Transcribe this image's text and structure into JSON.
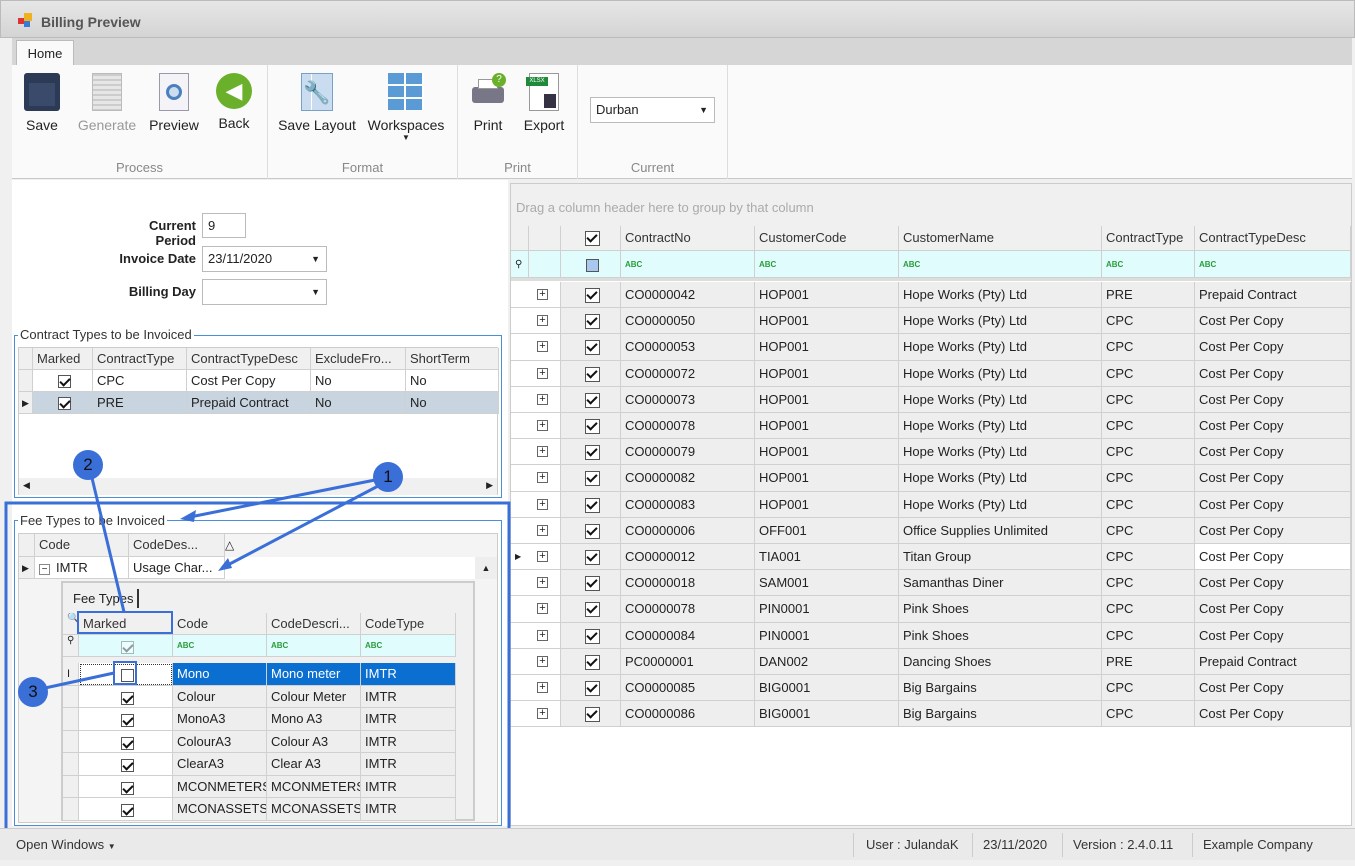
{
  "window": {
    "title": "Billing Preview"
  },
  "ribbon": {
    "tab": "Home",
    "groups": [
      {
        "label": "Process"
      },
      {
        "label": "Format"
      },
      {
        "label": "Print"
      },
      {
        "label": "Current"
      }
    ],
    "buttons": {
      "save": "Save",
      "generate": "Generate",
      "preview": "Preview",
      "back": "Back",
      "save_layout": "Save Layout",
      "workspaces": "Workspaces",
      "print": "Print",
      "export": "Export"
    },
    "branch_select": "Durban"
  },
  "form": {
    "current_period_label": "Current Period",
    "current_period": "9",
    "invoice_date_label": "Invoice Date",
    "invoice_date": "23/11/2020",
    "billing_day_label": "Billing Day",
    "billing_day": ""
  },
  "contract_types": {
    "title": "Contract Types to be Invoiced",
    "columns": [
      "Marked",
      "ContractType",
      "ContractTypeDesc",
      "ExcludeFro...",
      "ShortTerm"
    ],
    "rows": [
      {
        "marked": true,
        "type": "CPC",
        "desc": "Cost Per Copy",
        "exclude": "No",
        "short": "No"
      },
      {
        "marked": true,
        "type": "PRE",
        "desc": "Prepaid Contract",
        "exclude": "No",
        "short": "No"
      }
    ]
  },
  "fee_types": {
    "title": "Fee Types to be Invoiced",
    "columns": [
      "Code",
      "CodeDes..."
    ],
    "master_row": {
      "code": "IMTR",
      "desc": "Usage Char..."
    },
    "detail_tab": "Fee Types",
    "detail_columns": [
      "Marked",
      "Code",
      "CodeDescri...",
      "CodeType"
    ],
    "rows": [
      {
        "marked": false,
        "code": "Mono",
        "desc": "Mono meter",
        "type": "IMTR"
      },
      {
        "marked": true,
        "code": "Colour",
        "desc": "Colour Meter",
        "type": "IMTR"
      },
      {
        "marked": true,
        "code": "MonoA3",
        "desc": "Mono A3",
        "type": "IMTR"
      },
      {
        "marked": true,
        "code": "ColourA3",
        "desc": "Colour A3",
        "type": "IMTR"
      },
      {
        "marked": true,
        "code": "ClearA3",
        "desc": "Clear A3",
        "type": "IMTR"
      },
      {
        "marked": true,
        "code": "MCONMETERS",
        "desc": "MCONMETERS",
        "type": "IMTR"
      },
      {
        "marked": true,
        "code": "MCONASSETS",
        "desc": "MCONASSETS",
        "type": "IMTR"
      }
    ]
  },
  "main_grid": {
    "group_hint": "Drag a column header here to group by that column",
    "columns": [
      "ContractNo",
      "CustomerCode",
      "CustomerName",
      "ContractType",
      "ContractTypeDesc"
    ],
    "rows": [
      [
        "CO0000042",
        "HOP001",
        "Hope Works (Pty) Ltd",
        "PRE",
        "Prepaid Contract"
      ],
      [
        "CO0000050",
        "HOP001",
        "Hope Works (Pty) Ltd",
        "CPC",
        "Cost Per Copy"
      ],
      [
        "CO0000053",
        "HOP001",
        "Hope Works (Pty) Ltd",
        "CPC",
        "Cost Per Copy"
      ],
      [
        "CO0000072",
        "HOP001",
        "Hope Works (Pty) Ltd",
        "CPC",
        "Cost Per Copy"
      ],
      [
        "CO0000073",
        "HOP001",
        "Hope Works (Pty) Ltd",
        "CPC",
        "Cost Per Copy"
      ],
      [
        "CO0000078",
        "HOP001",
        "Hope Works (Pty) Ltd",
        "CPC",
        "Cost Per Copy"
      ],
      [
        "CO0000079",
        "HOP001",
        "Hope Works (Pty) Ltd",
        "CPC",
        "Cost Per Copy"
      ],
      [
        "CO0000082",
        "HOP001",
        "Hope Works (Pty) Ltd",
        "CPC",
        "Cost Per Copy"
      ],
      [
        "CO0000083",
        "HOP001",
        "Hope Works (Pty) Ltd",
        "CPC",
        "Cost Per Copy"
      ],
      [
        "CO0000006",
        "OFF001",
        "Office Supplies Unlimited",
        "CPC",
        "Cost Per Copy"
      ],
      [
        "CO0000012",
        "TIA001",
        "Titan Group",
        "CPC",
        "Cost Per Copy"
      ],
      [
        "CO0000018",
        "SAM001",
        "Samanthas Diner",
        "CPC",
        "Cost Per Copy"
      ],
      [
        "CO0000078",
        "PIN0001",
        "Pink Shoes",
        "CPC",
        "Cost Per Copy"
      ],
      [
        "CO0000084",
        "PIN0001",
        "Pink Shoes",
        "CPC",
        "Cost Per Copy"
      ],
      [
        "PC0000001",
        "DAN002",
        "Dancing Shoes",
        "PRE",
        "Prepaid Contract"
      ],
      [
        "CO0000085",
        "BIG0001",
        "Big Bargains",
        "CPC",
        "Cost Per Copy"
      ],
      [
        "CO0000086",
        "BIG0001",
        "Big Bargains",
        "CPC",
        "Cost Per Copy"
      ]
    ],
    "focused_row": 10
  },
  "annotations": [
    "1",
    "2",
    "3"
  ],
  "annotation_color": "#3a6fd8",
  "status": {
    "open_windows": "Open Windows",
    "user": "User : JulandaK",
    "date": "23/11/2020",
    "version": "Version : 2.4.0.11",
    "company": "Example Company"
  }
}
